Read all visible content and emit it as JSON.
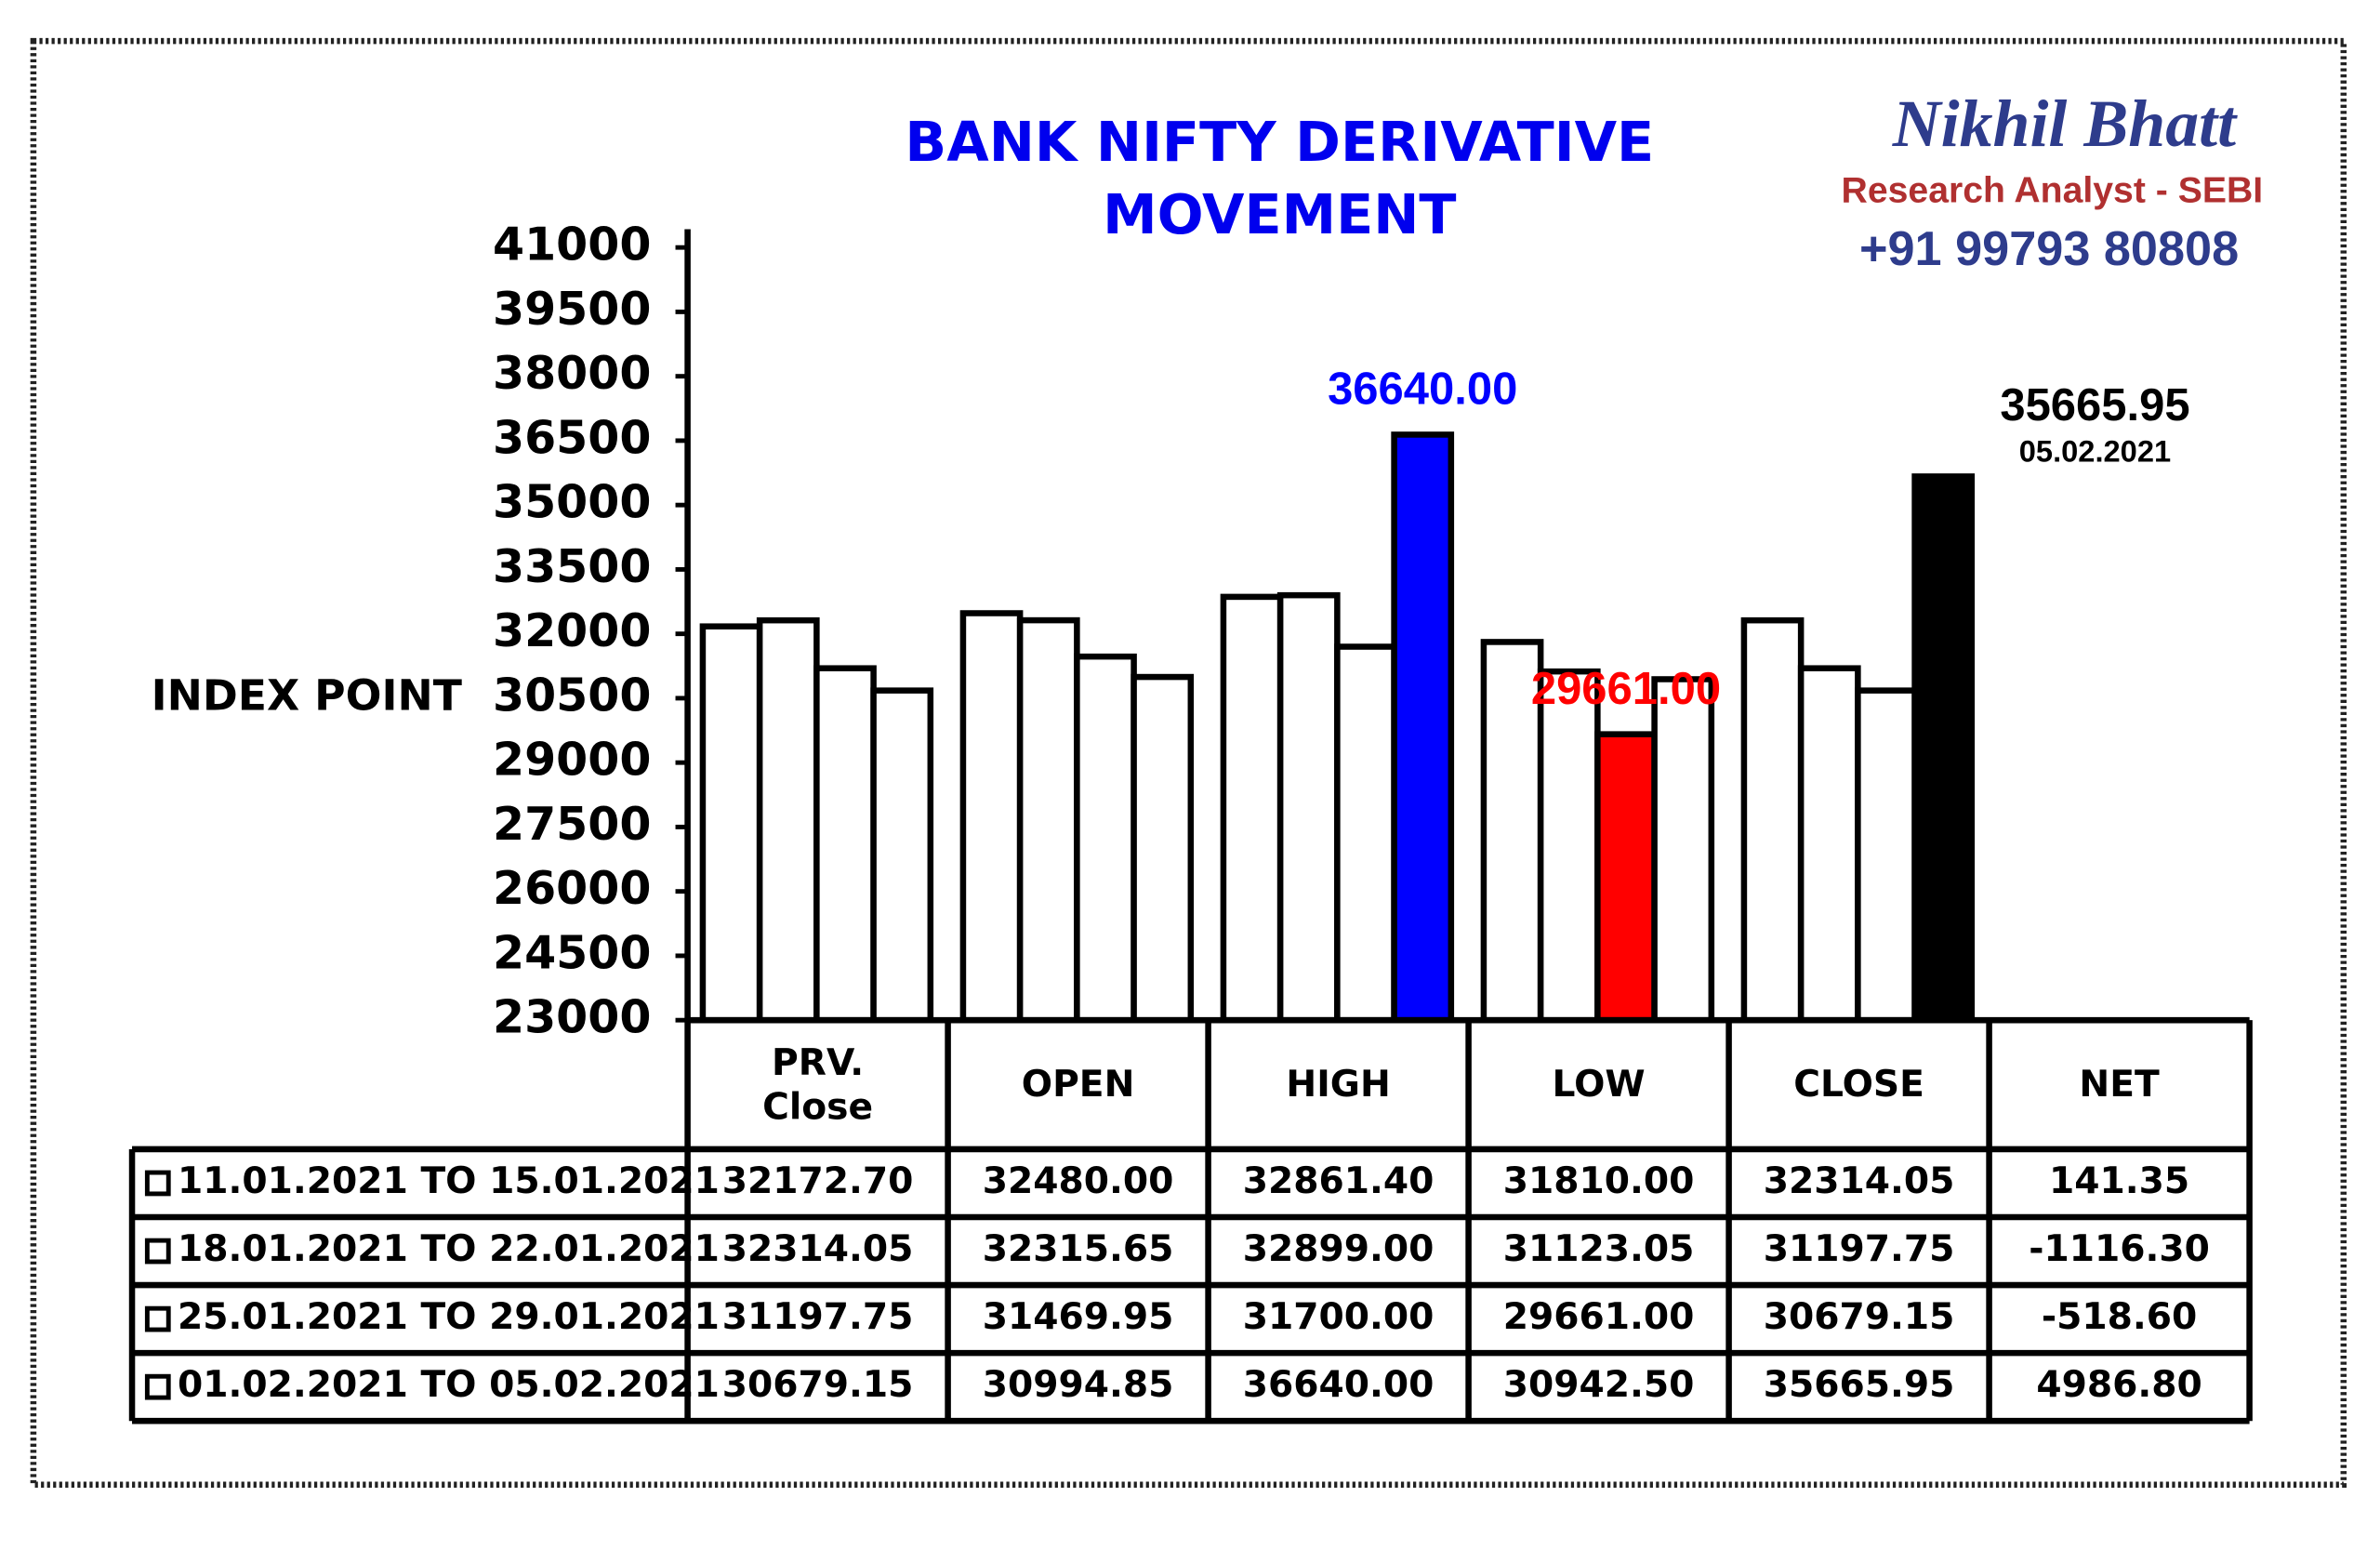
{
  "chart_data": {
    "type": "bar",
    "title": [
      "BANK NIFTY DERIVATIVE",
      "MOVEMENT"
    ],
    "y_label": "INDEX POINT",
    "categories": [
      "PRV. Close",
      "OPEN",
      "HIGH",
      "LOW",
      "CLOSE"
    ],
    "net_header": "NET",
    "series": [
      {
        "name": "11.01.2021 TO 15.01.2021",
        "values": [
          32172.7,
          32480,
          32861.4,
          31810,
          32314.05
        ],
        "value_labels": [
          "32172.70",
          "32480.00",
          "32861.40",
          "31810.00",
          "32314.05"
        ],
        "net": "141.35",
        "colors": [
          "#ffffff",
          "#ffffff",
          "#ffffff",
          "#ffffff",
          "#ffffff"
        ]
      },
      {
        "name": "18.01.2021 TO 22.01.2021",
        "values": [
          32314.05,
          32315.65,
          32899,
          31123.05,
          31197.75
        ],
        "value_labels": [
          "32314.05",
          "32315.65",
          "32899.00",
          "31123.05",
          "31197.75"
        ],
        "net": "-1116.30",
        "colors": [
          "#ffffff",
          "#ffffff",
          "#ffffff",
          "#ffffff",
          "#ffffff"
        ]
      },
      {
        "name": "25.01.2021 TO 29.01.2021",
        "values": [
          31197.75,
          31469.95,
          31700,
          29661,
          30679.15
        ],
        "value_labels": [
          "31197.75",
          "31469.95",
          "31700.00",
          "29661.00",
          "30679.15"
        ],
        "net": "-518.60",
        "colors": [
          "#ffffff",
          "#ffffff",
          "#ffffff",
          "#ff0000",
          "#ffffff"
        ]
      },
      {
        "name": "01.02.2021 TO 05.02.2021",
        "values": [
          30679.15,
          30994.85,
          36640,
          30942.5,
          35665.95
        ],
        "value_labels": [
          "30679.15",
          "30994.85",
          "36640.00",
          "30942.50",
          "35665.95"
        ],
        "net": "4986.80",
        "colors": [
          "#ffffff",
          "#ffffff",
          "#0000ff",
          "#ffffff",
          "#000000"
        ]
      }
    ],
    "annotation": "05.02.2021",
    "ylim": [
      23000,
      41000
    ],
    "yticks": [
      23000,
      24500,
      26000,
      27500,
      29000,
      30500,
      32000,
      33500,
      35000,
      36500,
      38000,
      39500,
      41000
    ]
  },
  "branding": {
    "name": "Nikhil Bhatt",
    "role": "Research Analyst - SEBI",
    "phone": "+91 99793 80808"
  }
}
